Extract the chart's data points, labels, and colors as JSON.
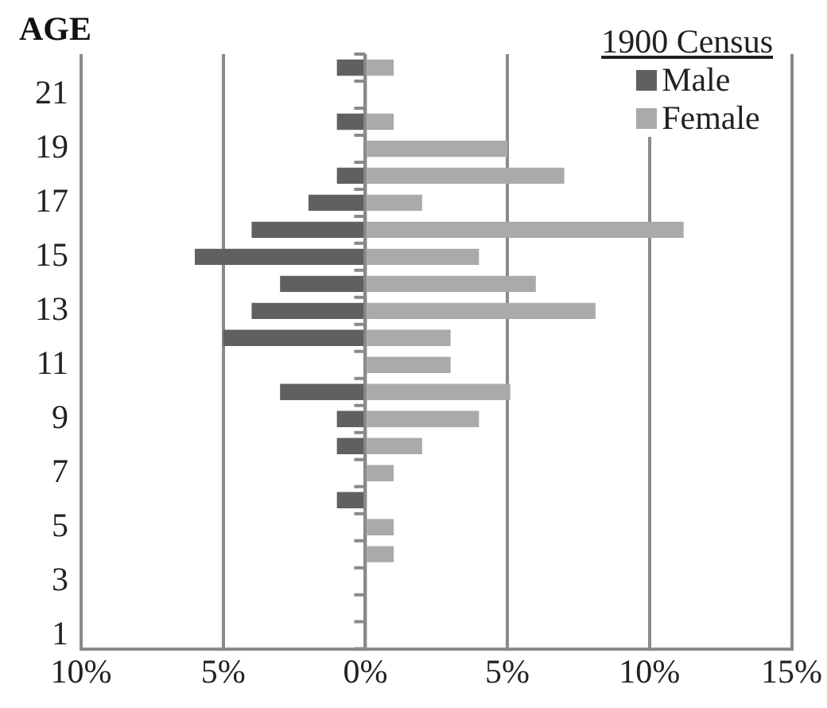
{
  "chart_data": {
    "type": "bar",
    "orientation": "horizontal",
    "stacked": true,
    "ylabel": "AGE",
    "legend_title": "1900 Census",
    "legend": "top right",
    "grid": "x",
    "categories": [
      null,
      "21",
      null,
      "19",
      null,
      "17",
      null,
      "15",
      null,
      "13",
      null,
      "11",
      null,
      "9",
      null,
      "7",
      null,
      "5",
      null,
      "3",
      null,
      "1"
    ],
    "series": [
      {
        "name": "Male",
        "color": "#606060",
        "values": [
          -1,
          0,
          -1,
          0,
          -1,
          -2,
          -4,
          -6,
          -3,
          -4,
          -5,
          0,
          -3,
          -1,
          -1,
          0,
          -1,
          0,
          0,
          0,
          0,
          0
        ]
      },
      {
        "name": "Female",
        "color": "#aaaaaa",
        "values": [
          1,
          0,
          1,
          5,
          7,
          2,
          11.2,
          4,
          6,
          8.1,
          3,
          3,
          5.1,
          4,
          2,
          1,
          0,
          1,
          1,
          0,
          0,
          0
        ]
      }
    ],
    "xlim": [
      -10,
      15
    ],
    "xticks": [
      {
        "value": -10,
        "label": "10%"
      },
      {
        "value": -5,
        "label": "5%"
      },
      {
        "value": 0,
        "label": "0%"
      },
      {
        "value": 5,
        "label": "5%"
      },
      {
        "value": 10,
        "label": "10%"
      },
      {
        "value": 15,
        "label": "15%"
      }
    ]
  }
}
